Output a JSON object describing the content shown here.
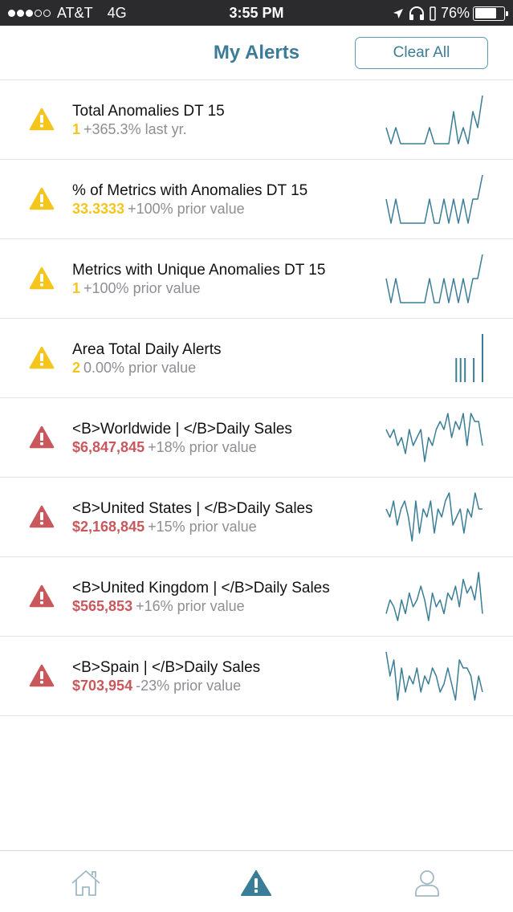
{
  "status_bar": {
    "carrier": "AT&T",
    "network": "4G",
    "time": "3:55 PM",
    "battery": "76%",
    "battery_level": 0.76,
    "signal_bars_filled": 3,
    "signal_bars_total": 5
  },
  "header": {
    "title": "My Alerts",
    "clear_label": "Clear All"
  },
  "colors": {
    "accent": "#3c7c99",
    "warning": "#f4c51c",
    "danger": "#c9585d",
    "sparkline": "#3a7d96",
    "muted": "#8e8e93"
  },
  "alerts": [
    {
      "severity": "warning",
      "icon": "warning-triangle-icon",
      "title": "Total Anomalies DT 15",
      "value": "1",
      "change": "+365.3% last yr.",
      "chart_type": "line",
      "series": [
        1,
        0,
        1,
        0,
        0,
        0,
        0,
        0,
        0,
        1,
        0,
        0,
        0,
        0,
        2,
        0,
        1,
        0,
        2,
        1,
        3
      ]
    },
    {
      "severity": "warning",
      "icon": "warning-triangle-icon",
      "title": "% of Metrics with Anomalies DT 15",
      "value": "33.3333",
      "change": "+100% prior value",
      "chart_type": "line",
      "series": [
        1,
        0,
        1,
        0,
        0,
        0,
        0,
        0,
        0,
        1,
        0,
        0,
        1,
        0,
        1,
        0,
        1,
        0,
        1,
        1,
        2
      ]
    },
    {
      "severity": "warning",
      "icon": "warning-triangle-icon",
      "title": "Metrics with Unique Anomalies DT 15",
      "value": "1",
      "change": "+100% prior value",
      "chart_type": "line",
      "series": [
        1,
        0,
        1,
        0,
        0,
        0,
        0,
        0,
        0,
        1,
        0,
        0,
        1,
        0,
        1,
        0,
        1,
        0,
        1,
        1,
        2
      ]
    },
    {
      "severity": "warning",
      "icon": "warning-triangle-icon",
      "title": "Area Total Daily Alerts",
      "value": "2",
      "change": "0.00% prior value",
      "chart_type": "bar",
      "series": [
        0,
        0,
        0,
        0,
        0,
        0,
        0,
        0,
        0,
        0,
        0,
        0,
        0,
        0,
        0,
        0,
        1,
        1,
        1,
        0,
        1,
        0,
        2
      ]
    },
    {
      "severity": "danger",
      "icon": "danger-triangle-icon",
      "title": "<B>Worldwide | </B>Daily Sales",
      "value": "$6,847,845",
      "change": "+18% prior value",
      "chart_type": "line",
      "series": [
        5,
        4,
        5,
        3,
        4,
        2,
        5,
        3,
        4,
        5,
        1,
        4,
        3,
        5,
        6,
        5,
        7,
        4,
        6,
        5,
        7,
        3,
        7,
        6,
        6,
        3
      ]
    },
    {
      "severity": "danger",
      "icon": "danger-triangle-icon",
      "title": "<B>United States | </B>Daily Sales",
      "value": "$2,168,845",
      "change": "+15% prior value",
      "chart_type": "line",
      "series": [
        5,
        4,
        6,
        3,
        5,
        6,
        4,
        1,
        6,
        2,
        5,
        4,
        6,
        2,
        5,
        4,
        6,
        7,
        3,
        4,
        5,
        2,
        5,
        4,
        7,
        5,
        5
      ]
    },
    {
      "severity": "danger",
      "icon": "danger-triangle-icon",
      "title": "<B>United Kingdom | </B>Daily Sales",
      "value": "$565,853",
      "change": "+16% prior value",
      "chart_type": "line",
      "series": [
        3,
        5,
        4,
        2,
        5,
        3,
        6,
        4,
        5,
        7,
        5,
        2,
        6,
        4,
        5,
        3,
        6,
        5,
        7,
        4,
        8,
        6,
        7,
        5,
        9,
        3
      ]
    },
    {
      "severity": "danger",
      "icon": "danger-triangle-icon",
      "title": "<B>Spain | </B>Daily Sales",
      "value": "$703,954",
      "change": "-23% prior value",
      "chart_type": "line",
      "series": [
        9,
        6,
        8,
        3,
        7,
        4,
        6,
        5,
        7,
        4,
        6,
        5,
        7,
        6,
        4,
        5,
        7,
        5,
        3,
        8,
        7,
        7,
        6,
        3,
        6,
        4
      ]
    }
  ],
  "tabs": [
    {
      "name": "home",
      "icon": "home-icon",
      "active": false
    },
    {
      "name": "alerts",
      "icon": "alert-tab-icon",
      "active": true
    },
    {
      "name": "profile",
      "icon": "user-icon",
      "active": false
    }
  ]
}
